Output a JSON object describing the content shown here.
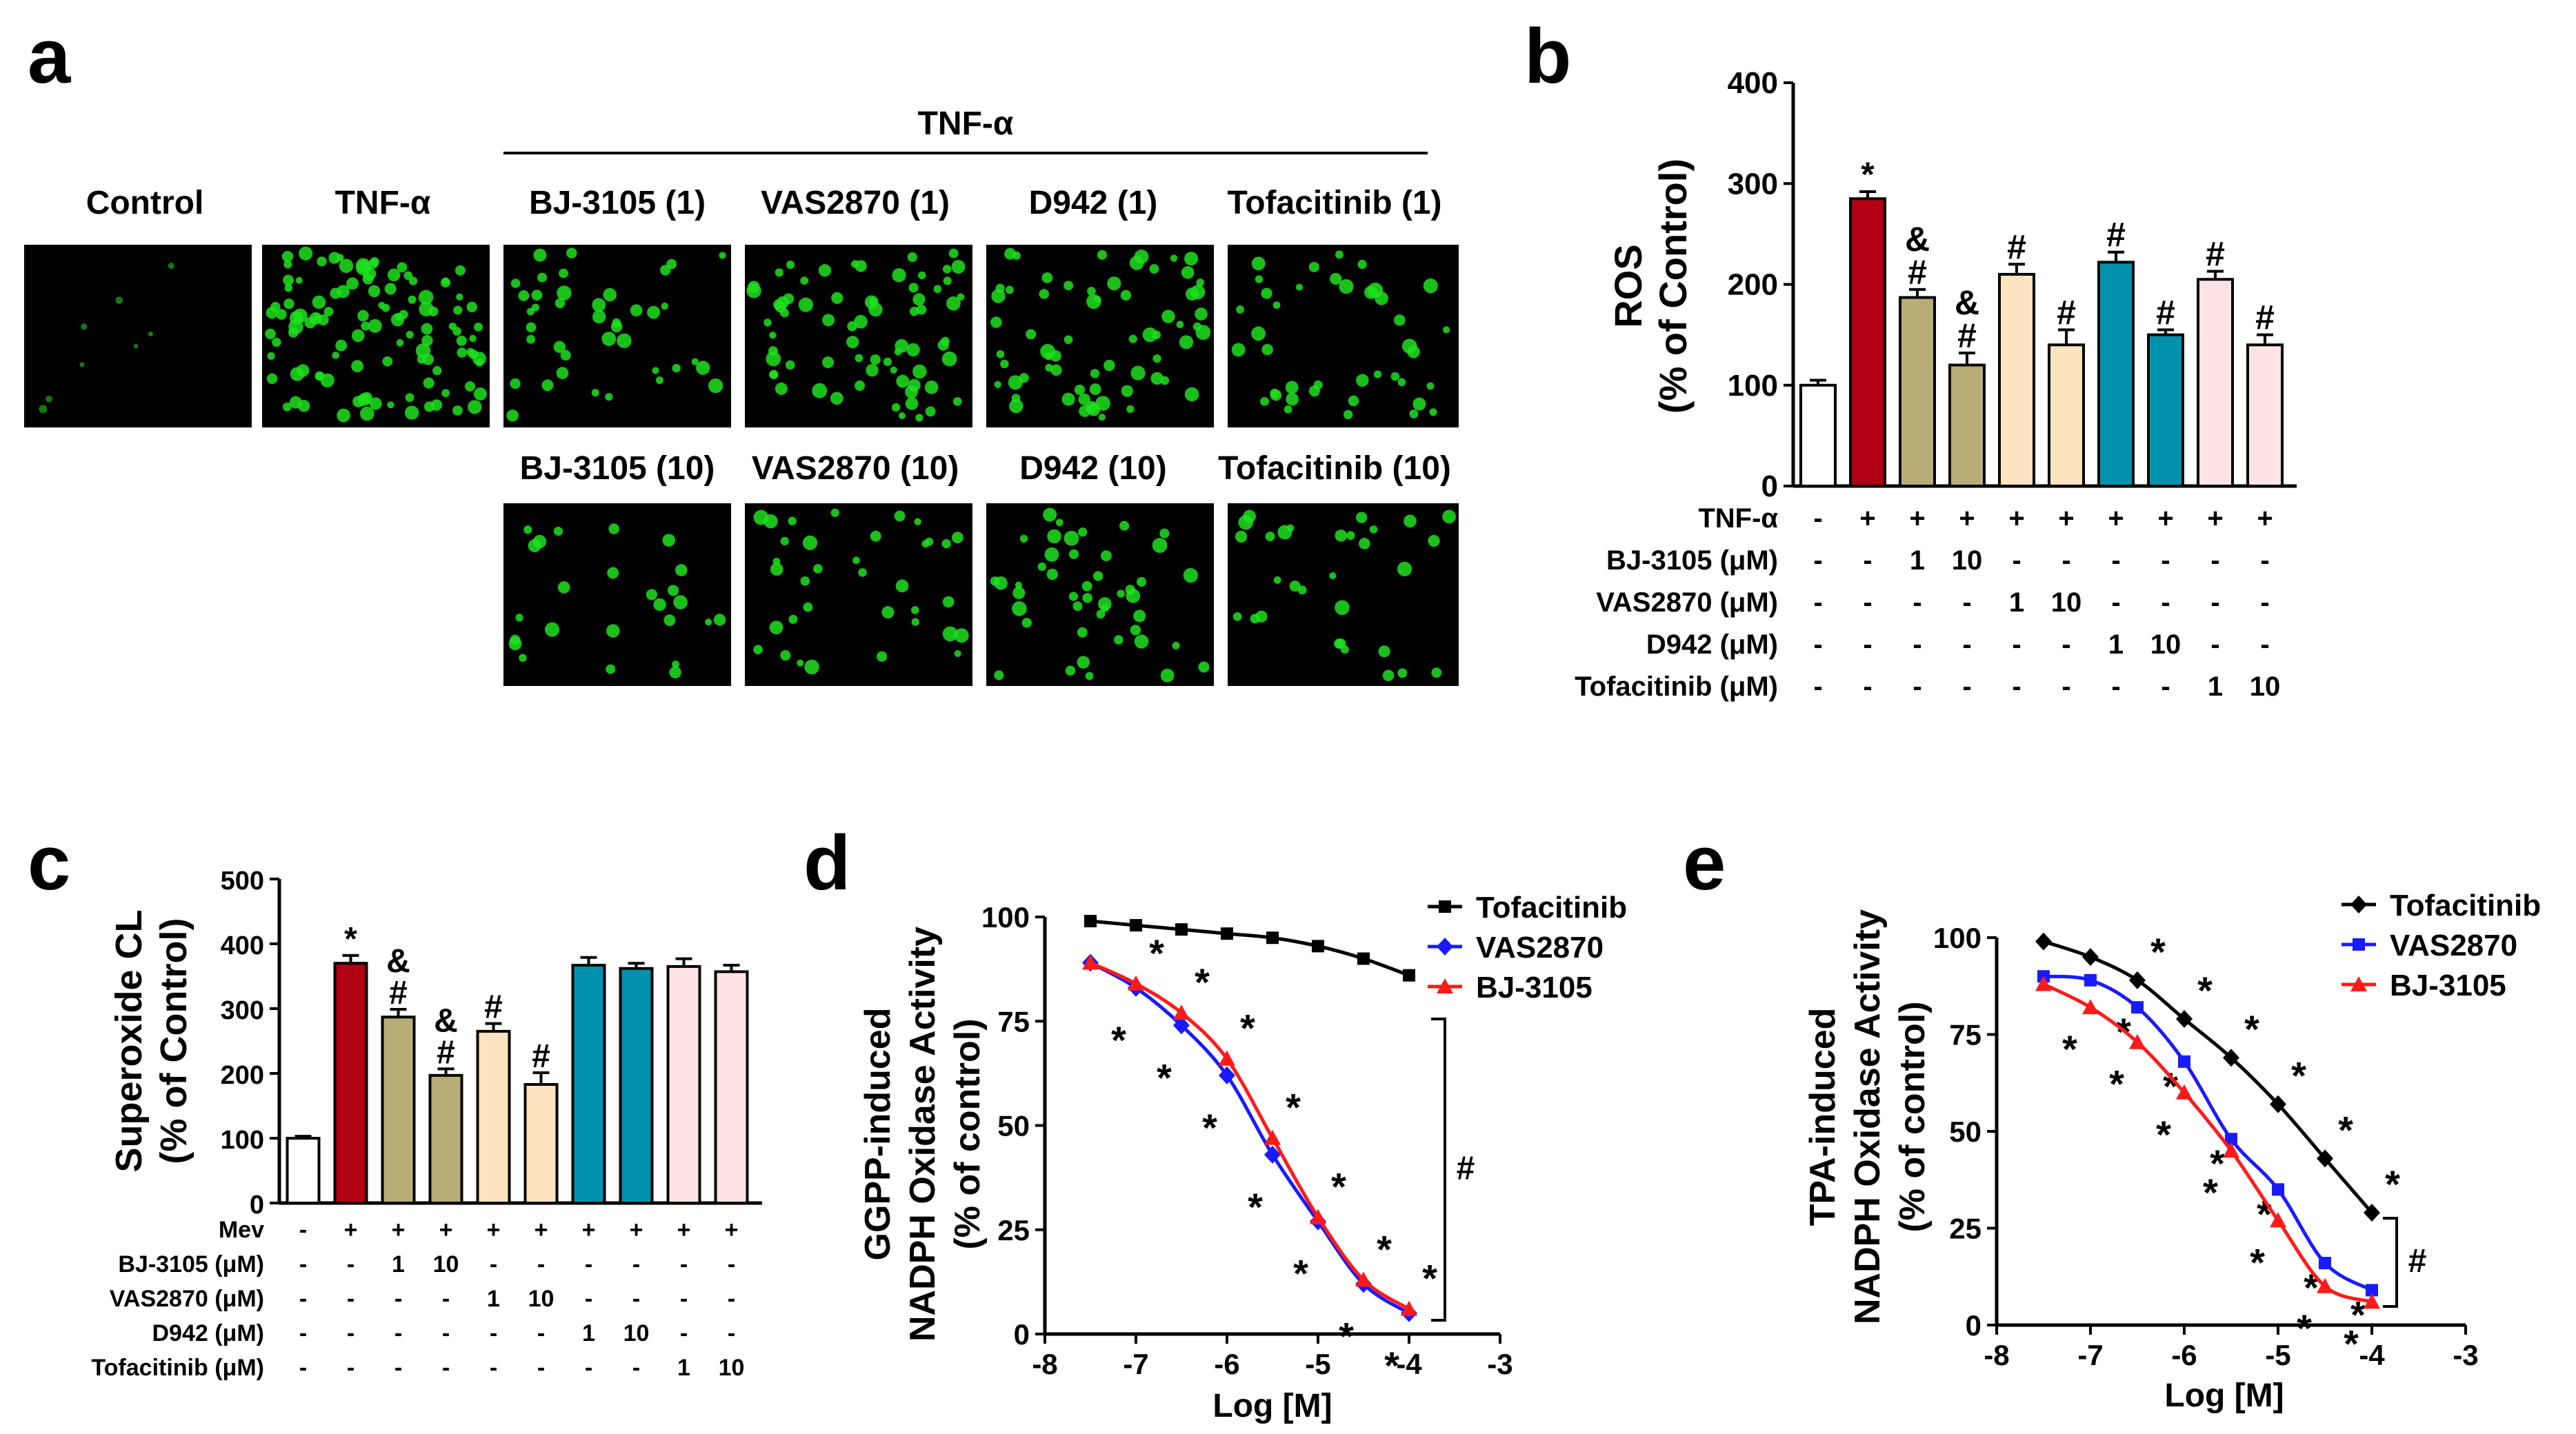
{
  "panel_letters": [
    "a",
    "b",
    "c",
    "d",
    "e"
  ],
  "panel_a": {
    "group_label": "TNF-α",
    "top_row": [
      "Control",
      "TNF-α",
      "BJ-3105 (1)",
      "VAS2870 (1)",
      "D942 (1)",
      "Tofacitinib (1)"
    ],
    "bottom_row": [
      "BJ-3105 (10)",
      "VAS2870 (10)",
      "D942 (10)",
      "Tofacitinib (10)"
    ]
  },
  "colors": {
    "white": "#ffffff",
    "red": "#b00012",
    "olive": "#b9ad77",
    "peach": "#fde3bf",
    "teal": "#0092ad",
    "pink": "#fde3e3",
    "cell_green": "#1fe01f",
    "black_series": "#000000",
    "blue_series": "#1a1aff",
    "red_series": "#ff1a1a"
  },
  "chart_data": [
    {
      "panel": "b",
      "type": "bar",
      "ylabel_line1": "ROS",
      "ylabel_line2": "(% of Control)",
      "ylim": [
        0,
        400
      ],
      "yticks": [
        "0",
        "100",
        "200",
        "300",
        "400"
      ],
      "values": [
        100,
        285,
        187,
        120,
        210,
        140,
        222,
        150,
        205,
        140
      ],
      "errors": [
        5,
        7,
        8,
        12,
        10,
        15,
        10,
        5,
        8,
        10
      ],
      "bar_colors": [
        "white",
        "red",
        "olive",
        "olive",
        "peach",
        "peach",
        "teal",
        "teal",
        "pink",
        "pink"
      ],
      "annotations": [
        [],
        [
          "*"
        ],
        [
          "&",
          "#"
        ],
        [
          "&",
          "#"
        ],
        [
          "#"
        ],
        [
          "#"
        ],
        [
          "#"
        ],
        [
          "#"
        ],
        [
          "#"
        ],
        [
          "#"
        ]
      ],
      "treatment_table": [
        {
          "label": "TNF-α",
          "cells": [
            "-",
            "+",
            "+",
            "+",
            "+",
            "+",
            "+",
            "+",
            "+",
            "+"
          ]
        },
        {
          "label": "BJ-3105 (μM)",
          "cells": [
            "-",
            "-",
            "1",
            "10",
            "-",
            "-",
            "-",
            "-",
            "-",
            "-"
          ]
        },
        {
          "label": "VAS2870 (μM)",
          "cells": [
            "-",
            "-",
            "-",
            "-",
            "1",
            "10",
            "-",
            "-",
            "-",
            "-"
          ]
        },
        {
          "label": "D942 (μM)",
          "cells": [
            "-",
            "-",
            "-",
            "-",
            "-",
            "-",
            "1",
            "10",
            "-",
            "-"
          ]
        },
        {
          "label": "Tofacitinib (μM)",
          "cells": [
            "-",
            "-",
            "-",
            "-",
            "-",
            "-",
            "-",
            "-",
            "1",
            "10"
          ]
        }
      ]
    },
    {
      "panel": "c",
      "type": "bar",
      "ylabel_line1": "Superoxide CL",
      "ylabel_line2": "(% of Control)",
      "ylim": [
        0,
        500
      ],
      "yticks": [
        "0",
        "100",
        "200",
        "300",
        "400",
        "500"
      ],
      "values": [
        100,
        370,
        287,
        197,
        265,
        183,
        367,
        362,
        365,
        357
      ],
      "errors": [
        3,
        12,
        12,
        10,
        12,
        18,
        12,
        8,
        12,
        10
      ],
      "bar_colors": [
        "white",
        "red",
        "olive",
        "olive",
        "peach",
        "peach",
        "teal",
        "teal",
        "pink",
        "pink"
      ],
      "annotations": [
        [],
        [
          "*"
        ],
        [
          "&",
          "#"
        ],
        [
          "&",
          "#"
        ],
        [
          "#"
        ],
        [
          "#"
        ],
        [],
        [],
        [],
        []
      ],
      "treatment_table": [
        {
          "label": "Mev",
          "cells": [
            "-",
            "+",
            "+",
            "+",
            "+",
            "+",
            "+",
            "+",
            "+",
            "+"
          ]
        },
        {
          "label": "BJ-3105 (μM)",
          "cells": [
            "-",
            "-",
            "1",
            "10",
            "-",
            "-",
            "-",
            "-",
            "-",
            "-"
          ]
        },
        {
          "label": "VAS2870 (μM)",
          "cells": [
            "-",
            "-",
            "-",
            "-",
            "1",
            "10",
            "-",
            "-",
            "-",
            "-"
          ]
        },
        {
          "label": "D942 (μM)",
          "cells": [
            "-",
            "-",
            "-",
            "-",
            "-",
            "-",
            "1",
            "10",
            "-",
            "-"
          ]
        },
        {
          "label": "Tofacitinib (μM)",
          "cells": [
            "-",
            "-",
            "-",
            "-",
            "-",
            "-",
            "-",
            "-",
            "1",
            "10"
          ]
        }
      ]
    },
    {
      "panel": "d",
      "type": "line",
      "ylabel_line1": "GGPP-induced",
      "ylabel_line2": "NADPH Oxidase Activity",
      "ylabel_line3": "(% of control)",
      "xlabel": "Log [M]",
      "xlim": [
        -8,
        -3
      ],
      "ylim": [
        0,
        100
      ],
      "xticks": [
        "-8",
        "-7",
        "-6",
        "-5",
        "-4",
        "-3"
      ],
      "yticks": [
        "0",
        "25",
        "50",
        "75",
        "100"
      ],
      "x": [
        -7.5,
        -7.0,
        -6.5,
        -6.0,
        -5.5,
        -5.0,
        -4.5,
        -4.0
      ],
      "series": [
        {
          "name": "Tofacitinib",
          "color": "black_series",
          "marker": "square",
          "values": [
            99,
            98,
            97,
            96,
            95,
            93,
            90,
            86
          ],
          "stars": [
            false,
            false,
            false,
            false,
            false,
            false,
            false,
            false
          ]
        },
        {
          "name": "VAS2870",
          "color": "blue_series",
          "marker": "diamond",
          "values": [
            89,
            83,
            74,
            62,
            43,
            27,
            12,
            5
          ],
          "stars": [
            false,
            true,
            true,
            true,
            true,
            true,
            true,
            true
          ]
        },
        {
          "name": "BJ-3105",
          "color": "red_series",
          "marker": "triangle",
          "values": [
            89,
            84,
            77,
            66,
            47,
            28,
            13,
            6
          ],
          "stars": [
            false,
            true,
            true,
            true,
            true,
            true,
            true,
            true
          ]
        }
      ],
      "significance": "#"
    },
    {
      "panel": "e",
      "type": "line",
      "ylabel_line1": "TPA-induced",
      "ylabel_line2": "NADPH Oxidase Activity",
      "ylabel_line3": "(% of control)",
      "xlabel": "Log [M]",
      "xlim": [
        -8,
        -3
      ],
      "ylim": [
        0,
        100
      ],
      "xticks": [
        "-8",
        "-7",
        "-6",
        "-5",
        "-4",
        "-3"
      ],
      "yticks": [
        "0",
        "25",
        "50",
        "75",
        "100"
      ],
      "x": [
        -7.5,
        -7.0,
        -6.5,
        -6.0,
        -5.5,
        -5.0,
        -4.5,
        -4.0
      ],
      "series": [
        {
          "name": "Tofacitinib",
          "color": "black_series",
          "marker": "diamond",
          "values": [
            99,
            95,
            89,
            79,
            69,
            57,
            43,
            29
          ],
          "stars": [
            false,
            false,
            true,
            true,
            true,
            true,
            true,
            true
          ]
        },
        {
          "name": "VAS2870",
          "color": "blue_series",
          "marker": "square",
          "values": [
            90,
            89,
            82,
            68,
            48,
            35,
            16,
            9
          ],
          "stars": [
            false,
            false,
            true,
            true,
            true,
            true,
            true,
            true
          ]
        },
        {
          "name": "BJ-3105",
          "color": "red_series",
          "marker": "triangle",
          "values": [
            88,
            82,
            73,
            60,
            45,
            27,
            10,
            6
          ],
          "stars": [
            false,
            true,
            true,
            true,
            true,
            true,
            true,
            true
          ]
        }
      ],
      "significance": "#"
    }
  ]
}
